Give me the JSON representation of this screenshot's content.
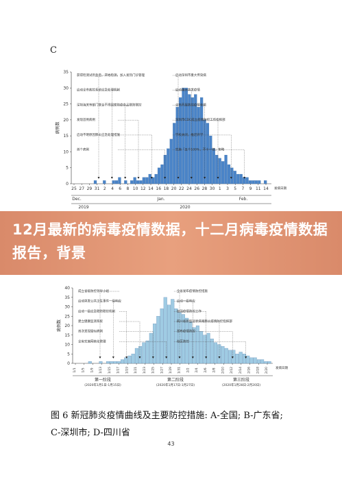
{
  "figure_panel_label": "C",
  "banner_title": "12月最新的病毒疫情数据，十二月病毒疫情数据报告，背景",
  "caption_line1": "图 6 新冠肺炎疫情曲线及主要防控措施: A-全国; B-广东省;",
  "caption_line2": "C-深圳市; D-四川省",
  "page_number": "43",
  "colors": {
    "bar_c": "#4a84c8",
    "bar_d": "#9fcbe3",
    "banner": "#e39a78"
  },
  "chart_data": [
    {
      "type": "bar",
      "panel": "C",
      "ylabel": "病例数",
      "yticks": [
        "0",
        "5",
        "10",
        "15",
        "20",
        "25",
        "30",
        "35"
      ],
      "ylim": [
        0,
        35
      ],
      "xticks": [
        "25",
        "27",
        "29",
        "31",
        "2",
        "4",
        "6",
        "8",
        "10",
        "12",
        "14",
        "16",
        "18",
        "20",
        "22",
        "24",
        "26",
        "28",
        "30",
        "1",
        "3",
        "5",
        "7",
        "9",
        "11",
        "14"
      ],
      "x_end_label": "发病日期",
      "months": [
        "Dec.",
        "Jan.",
        "Feb."
      ],
      "years": [
        "2019",
        "2020"
      ],
      "values": [
        0,
        0,
        0,
        0,
        0,
        0,
        0,
        1,
        0,
        0,
        1,
        0,
        0,
        1,
        1,
        2,
        0,
        1,
        0,
        1,
        2,
        1,
        1,
        2,
        2,
        3,
        2,
        3,
        5,
        6,
        9,
        11,
        14,
        19,
        24,
        27,
        30,
        30,
        28,
        27,
        28,
        24,
        27,
        20,
        19,
        15,
        11,
        9,
        8,
        7,
        9,
        6,
        5,
        4,
        3,
        3,
        2,
        2,
        1,
        1,
        1,
        1,
        0,
        1,
        0
      ],
      "annotations": [
        "获得检测试剂盒后，开始检测，加入发热门诊管理，固定定点救治",
        "启动全市疾控系统应急处理机制",
        "深圳海关等部门联合不得国家防疫食品联防联控",
        "发现首例病例",
        "启动不明原因肺炎应急处理措施",
        "首个病例",
        "启动深圳市重大传染病",
        "启动重大突发疫情",
        "全市开展防控疫情专题",
        "深圳市CDC成立疫情防控工作指挥部",
        "学校关闭，推迟开学",
        "实施「五个100%，不十一律」策略"
      ]
    },
    {
      "type": "bar",
      "panel": "D",
      "ylabel": "病例数",
      "yticks": [
        "0",
        "5",
        "10",
        "15",
        "20",
        "25",
        "30",
        "35",
        "40"
      ],
      "ylim": [
        0,
        40
      ],
      "xticks": [
        "1/1",
        "1/5",
        "1/9",
        "1/13",
        "1/15",
        "1/17",
        "1/19",
        "1/21",
        "1/23",
        "1/25",
        "1/27",
        "1/29",
        "1/31",
        "2/2",
        "2/4",
        "2/6",
        "2/8",
        "2/10",
        "2/12",
        "2/14",
        "2/16",
        "2/18",
        "2/20"
      ],
      "x_end_label": "发病日期",
      "phases": [
        "第一阶段",
        "第二阶段",
        "第三阶段"
      ],
      "phase_dates": [
        "(2020年1月1日-1月15日)",
        "(2020年1月17日-1月27日)",
        "(2020年1月28日-2月20日)"
      ],
      "values": [
        0,
        0,
        0,
        0,
        1,
        0,
        0,
        1,
        0,
        1,
        1,
        1,
        1,
        2,
        3,
        4,
        5,
        8,
        9,
        11,
        12,
        16,
        21,
        25,
        29,
        35,
        31,
        34,
        29,
        27,
        26,
        24,
        22,
        19,
        20,
        17,
        15,
        16,
        13,
        11,
        10,
        9,
        8,
        7,
        7,
        5,
        6,
        5,
        4,
        3,
        3,
        2,
        2,
        1,
        1
      ],
      "annotations": [
        "成立省级防控领导小组",
        "启动突发公共卫生事件一级响应",
        "启动一级应急联防联控机制",
        "建立健康监测系统",
        "首次发现疑似病例",
        "全省实施网格化管理",
        "全省发布疫情防控措施",
        "启动一级响应",
        "加强疫情防控工作",
        "四川省新型冠状病毒肺炎疫情防控指挥部",
        "发布疫情防控",
        "社区防控"
      ]
    }
  ]
}
